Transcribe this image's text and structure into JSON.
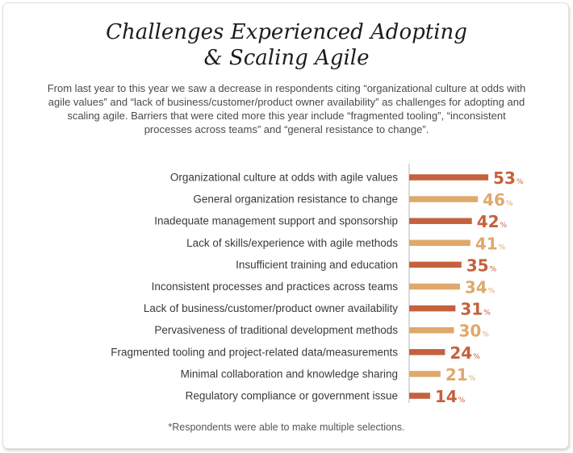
{
  "title_lines": [
    "Challenges Experienced Adopting",
    "& Scaling Agile"
  ],
  "subtitle": "From last year to this year we saw a decrease in respondents citing “organizational culture at odds with agile values” and “lack of business/customer/product owner availability” as challenges for adopting and scaling agile. Barriers that were cited more this year include “fragmented tooling”, “inconsistent processes across teams” and “general resistance to change”.",
  "footnote": "*Respondents were able to make multiple selections.",
  "colors": {
    "dark": "#c5613e",
    "light": "#dfa86c",
    "axis": "#b5b5b5",
    "label": "#3a3a3a"
  },
  "chart_data": {
    "type": "bar",
    "orientation": "horizontal",
    "categories": [
      "Organizational culture at odds with agile values",
      "General organization resistance to change",
      "Inadequate management support and sponsorship",
      "Lack of skills/experience with agile methods",
      "Insufficient training and education",
      "Inconsistent processes and practices across teams",
      "Lack of business/customer/product owner availability",
      "Pervasiveness of traditional development methods",
      "Fragmented tooling and project-related data/measurements",
      "Minimal collaboration and knowledge sharing",
      "Regulatory compliance or government issue"
    ],
    "values": [
      53,
      46,
      42,
      41,
      35,
      34,
      31,
      30,
      24,
      21,
      14
    ],
    "unit": "%",
    "xlim": [
      0,
      100
    ],
    "grid": false,
    "legend": "none"
  }
}
